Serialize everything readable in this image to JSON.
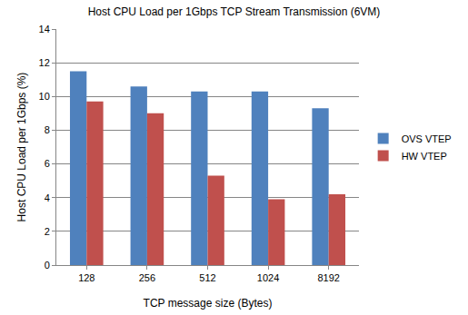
{
  "chart_data": {
    "type": "bar",
    "title": "Host CPU Load per 1Gbps TCP Stream Transmission (6VM)",
    "x_label": "TCP message size (Bytes)",
    "y_label": "Host CPU Load per 1Gbps (%)",
    "categories": [
      "128",
      "256",
      "512",
      "1024",
      "8192"
    ],
    "series": [
      {
        "name": "OVS VTEP",
        "color": "#4f81bd",
        "values": [
          11.5,
          10.6,
          10.3,
          10.3,
          9.3
        ]
      },
      {
        "name": "HW VTEP",
        "color": "#c0504d",
        "values": [
          9.7,
          9.0,
          5.3,
          3.9,
          4.2
        ]
      }
    ],
    "ylim": [
      0,
      14
    ],
    "yticks": [
      0,
      2,
      4,
      6,
      8,
      10,
      12,
      14
    ],
    "grid": true,
    "legend": "right"
  }
}
